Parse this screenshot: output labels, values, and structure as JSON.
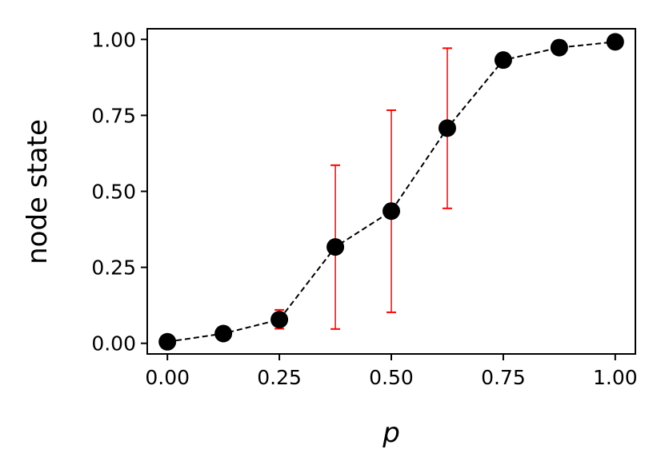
{
  "chart_data": {
    "type": "scatter",
    "title": "",
    "xlabel": "p",
    "ylabel": "node state",
    "xlim": [
      -0.045,
      1.045
    ],
    "ylim": [
      -0.035,
      1.035
    ],
    "xticks": [
      0.0,
      0.25,
      0.5,
      0.75,
      1.0
    ],
    "yticks": [
      0.0,
      0.25,
      0.5,
      0.75,
      1.0
    ],
    "xtick_labels": [
      "0.00",
      "0.25",
      "0.50",
      "0.75",
      "1.00"
    ],
    "ytick_labels": [
      "0.00",
      "0.25",
      "0.50",
      "0.75",
      "1.00"
    ],
    "grid": false,
    "legend": "none",
    "series": [
      {
        "x": [
          0.0,
          0.125,
          0.25,
          0.375,
          0.5,
          0.625,
          0.75,
          0.875,
          1.0
        ],
        "y": [
          0.005,
          0.032,
          0.078,
          0.317,
          0.435,
          0.708,
          0.932,
          0.973,
          0.992
        ],
        "err_low": [
          null,
          null,
          0.048,
          0.047,
          0.102,
          0.444,
          null,
          null,
          null
        ],
        "err_high": [
          null,
          null,
          0.11,
          0.586,
          0.767,
          0.971,
          null,
          null,
          null
        ],
        "marker_color": "#000000",
        "line_color": "#000000",
        "line_style": "dashed",
        "errorbar_color": "#ff0000"
      }
    ]
  }
}
